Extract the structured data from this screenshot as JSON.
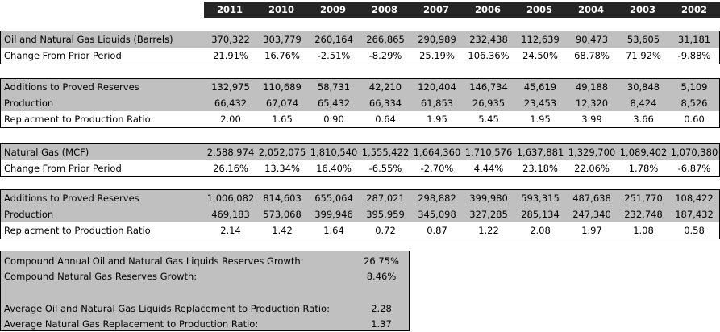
{
  "years": [
    "2011",
    "2010",
    "2009",
    "2008",
    "2007",
    "2006",
    "2005",
    "2004",
    "2003",
    "2002"
  ],
  "oil": {
    "title_row": {
      "label": "Oil and Natural Gas Liquids (Barrels)",
      "values": [
        "370,322",
        "303,779",
        "260,164",
        "266,865",
        "290,989",
        "232,438",
        "112,639",
        "90,473",
        "53,605",
        "31,181"
      ]
    },
    "change_row": {
      "label": "Change From Prior Period",
      "values": [
        "21.91%",
        "16.76%",
        "-2.51%",
        "-8.29%",
        "25.19%",
        "106.36%",
        "24.50%",
        "68.78%",
        "71.92%",
        "-9.88%"
      ]
    },
    "additions_row": {
      "label": "Additions to Proved Reserves",
      "values": [
        "132,975",
        "110,689",
        "58,731",
        "42,210",
        "120,404",
        "146,734",
        "45,619",
        "49,188",
        "30,848",
        "5,109"
      ]
    },
    "production_row": {
      "label": "Production",
      "values": [
        "66,432",
        "67,074",
        "65,432",
        "66,334",
        "61,853",
        "26,935",
        "23,453",
        "12,320",
        "8,424",
        "8,526"
      ]
    },
    "ratio_row": {
      "label": "Replacment to Production Ratio",
      "values": [
        "2.00",
        "1.65",
        "0.90",
        "0.64",
        "1.95",
        "5.45",
        "1.95",
        "3.99",
        "3.66",
        "0.60"
      ]
    }
  },
  "gas": {
    "title_row": {
      "label": "Natural Gas (MCF)",
      "values": [
        "2,588,974",
        "2,052,075",
        "1,810,540",
        "1,555,422",
        "1,664,360",
        "1,710,576",
        "1,637,881",
        "1,329,700",
        "1,089,402",
        "1,070,380"
      ]
    },
    "change_row": {
      "label": "Change From Prior Period",
      "values": [
        "26.16%",
        "13.34%",
        "16.40%",
        "-6.55%",
        "-2.70%",
        "4.44%",
        "23.18%",
        "22.06%",
        "1.78%",
        "-6.87%"
      ]
    },
    "additions_row": {
      "label": "Additions to Proved Reserves",
      "values": [
        "1,006,082",
        "814,603",
        "655,064",
        "287,021",
        "298,882",
        "399,980",
        "593,315",
        "487,638",
        "251,770",
        "108,422"
      ]
    },
    "production_row": {
      "label": "Production",
      "values": [
        "469,183",
        "573,068",
        "399,946",
        "395,959",
        "345,098",
        "327,285",
        "285,134",
        "247,340",
        "232,748",
        "187,432"
      ]
    },
    "ratio_row": {
      "label": "Replacment to Production Ratio",
      "values": [
        "2.14",
        "1.42",
        "1.64",
        "0.72",
        "0.87",
        "1.22",
        "2.08",
        "1.97",
        "1.08",
        "0.58"
      ]
    }
  },
  "summary": {
    "oil_growth": {
      "label": "Compound Annual Oil and Natural Gas Liquids Reserves Growth:",
      "value": "26.75%"
    },
    "gas_growth": {
      "label": "Compound Natural Gas Reserves Growth:",
      "value": "8.46%"
    },
    "oil_ratio": {
      "label": "Average Oil and Natural Gas Liquids Replacement to Production Ratio:",
      "value": "2.28"
    },
    "gas_ratio": {
      "label": "Average Natural Gas Replacement to Production Ratio:",
      "value": "1.37"
    }
  },
  "colors": {
    "header_bg": "#262626",
    "header_text": "#ffffff",
    "band_gray": "#c0c0c0"
  }
}
